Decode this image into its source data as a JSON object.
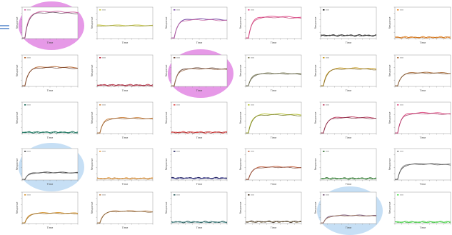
{
  "figure": {
    "columns": 6,
    "rows": 5,
    "highlight_colors": {
      "pink": "#d75bd8",
      "blue": "#9cc8ee"
    },
    "marker_color": "#3a72c4"
  },
  "chart_data": [
    {
      "type": "line",
      "panel": [
        0,
        0
      ],
      "shape": "rise",
      "level": 0.86,
      "colors": [
        "#d36aa6",
        "#5a3b52"
      ],
      "xlabel": "Time",
      "ylabel": "Response",
      "ylim": [
        0,
        1
      ],
      "highlight": "pink"
    },
    {
      "type": "line",
      "panel": [
        0,
        1
      ],
      "shape": "flat",
      "level": 0.42,
      "colors": [
        "#c8c84a",
        "#8a8a30"
      ],
      "xlabel": "Time",
      "ylabel": "Response",
      "ylim": [
        0,
        1
      ]
    },
    {
      "type": "line",
      "panel": [
        0,
        2
      ],
      "shape": "rise",
      "level": 0.62,
      "colors": [
        "#7b4ca6",
        "#c25a9a"
      ],
      "xlabel": "Time",
      "ylabel": "Response",
      "ylim": [
        0,
        1
      ]
    },
    {
      "type": "line",
      "panel": [
        0,
        3
      ],
      "shape": "rise",
      "level": 0.7,
      "colors": [
        "#e3548f",
        "#c23d73"
      ],
      "xlabel": "Time",
      "ylabel": "Response",
      "ylim": [
        0,
        1
      ]
    },
    {
      "type": "line",
      "panel": [
        0,
        4
      ],
      "shape": "low",
      "level": 0.1,
      "colors": [
        "#1a1a1a",
        "#555555"
      ],
      "xlabel": "Time",
      "ylabel": "Response",
      "ylim": [
        0,
        1
      ]
    },
    {
      "type": "line",
      "panel": [
        0,
        5
      ],
      "shape": "low",
      "level": 0.04,
      "colors": [
        "#e8892b",
        "#c06a1a"
      ],
      "xlabel": "Time",
      "ylabel": "Response",
      "ylim": [
        0,
        1
      ]
    },
    {
      "type": "line",
      "panel": [
        1,
        0
      ],
      "shape": "rise",
      "level": 0.62,
      "colors": [
        "#b86e3c",
        "#6a4030"
      ],
      "xlabel": "Time",
      "ylabel": "Response",
      "ylim": [
        0,
        1
      ]
    },
    {
      "type": "line",
      "panel": [
        1,
        1
      ],
      "shape": "low",
      "level": 0.04,
      "colors": [
        "#c0354a",
        "#8a2535"
      ],
      "xlabel": "Time",
      "ylabel": "Response",
      "ylim": [
        0,
        1
      ]
    },
    {
      "type": "line",
      "panel": [
        1,
        2
      ],
      "shape": "rise",
      "level": 0.58,
      "colors": [
        "#6a4a3a",
        "#a07050"
      ],
      "xlabel": "Time",
      "ylabel": "Response",
      "ylim": [
        0,
        1
      ],
      "highlight": "pink"
    },
    {
      "type": "line",
      "panel": [
        1,
        3
      ],
      "shape": "rise",
      "level": 0.42,
      "colors": [
        "#8a8a6a",
        "#5a5a40"
      ],
      "xlabel": "Time",
      "ylabel": "Response",
      "ylim": [
        0,
        1
      ]
    },
    {
      "type": "line",
      "panel": [
        1,
        4
      ],
      "shape": "rise",
      "level": 0.58,
      "colors": [
        "#c9a02a",
        "#7a6020"
      ],
      "xlabel": "Time",
      "ylabel": "Response",
      "ylim": [
        0,
        1
      ]
    },
    {
      "type": "line",
      "panel": [
        1,
        5
      ],
      "shape": "rise",
      "level": 0.44,
      "colors": [
        "#b0784a",
        "#705030"
      ],
      "xlabel": "Time",
      "ylabel": "Response",
      "ylim": [
        0,
        1
      ]
    },
    {
      "type": "line",
      "panel": [
        2,
        0
      ],
      "shape": "low",
      "level": 0.04,
      "colors": [
        "#1e6b5a",
        "#2e8a72"
      ],
      "xlabel": "Time",
      "ylabel": "Response",
      "ylim": [
        0,
        1
      ]
    },
    {
      "type": "line",
      "panel": [
        2,
        1
      ],
      "shape": "rise",
      "level": 0.5,
      "colors": [
        "#d08a4a",
        "#8a5a30"
      ],
      "xlabel": "Time",
      "ylabel": "Response",
      "ylim": [
        0,
        1
      ]
    },
    {
      "type": "line",
      "panel": [
        2,
        2
      ],
      "shape": "low",
      "level": 0.04,
      "colors": [
        "#e04848",
        "#a03030"
      ],
      "xlabel": "Time",
      "ylabel": "Response",
      "ylim": [
        0,
        1
      ]
    },
    {
      "type": "line",
      "panel": [
        2,
        3
      ],
      "shape": "rise",
      "level": 0.62,
      "colors": [
        "#b8c43a",
        "#6a7020"
      ],
      "xlabel": "Time",
      "ylabel": "Response",
      "ylim": [
        0,
        1
      ]
    },
    {
      "type": "line",
      "panel": [
        2,
        4
      ],
      "shape": "rise",
      "level": 0.52,
      "colors": [
        "#c04a6a",
        "#7a2a40"
      ],
      "xlabel": "Time",
      "ylabel": "Response",
      "ylim": [
        0,
        1
      ]
    },
    {
      "type": "line",
      "panel": [
        2,
        5
      ],
      "shape": "rise",
      "level": 0.66,
      "colors": [
        "#e0588a",
        "#a03060"
      ],
      "xlabel": "Time",
      "ylabel": "Response",
      "ylim": [
        0,
        1
      ]
    },
    {
      "type": "line",
      "panel": [
        3,
        0
      ],
      "shape": "rise",
      "level": 0.24,
      "colors": [
        "#4a4a4a",
        "#7a7a7a"
      ],
      "xlabel": "Time",
      "ylabel": "Response",
      "ylim": [
        0,
        1
      ],
      "highlight": "blue"
    },
    {
      "type": "line",
      "panel": [
        3,
        1
      ],
      "shape": "low",
      "level": 0.05,
      "colors": [
        "#e8a048",
        "#b07028"
      ],
      "xlabel": "Time",
      "ylabel": "Response",
      "ylim": [
        0,
        1
      ]
    },
    {
      "type": "line",
      "panel": [
        3,
        2
      ],
      "shape": "low",
      "level": 0.06,
      "colors": [
        "#1a1a5a",
        "#30308a"
      ],
      "xlabel": "Time",
      "ylabel": "Response",
      "ylim": [
        0,
        1
      ]
    },
    {
      "type": "line",
      "panel": [
        3,
        3
      ],
      "shape": "rise",
      "level": 0.42,
      "colors": [
        "#c86a4a",
        "#7a4030"
      ],
      "xlabel": "Time",
      "ylabel": "Response",
      "ylim": [
        0,
        1
      ]
    },
    {
      "type": "line",
      "panel": [
        3,
        4
      ],
      "shape": "low",
      "level": 0.05,
      "colors": [
        "#2a6a2a",
        "#4a9a4a"
      ],
      "xlabel": "Time",
      "ylabel": "Response",
      "ylim": [
        0,
        1
      ]
    },
    {
      "type": "line",
      "panel": [
        3,
        5
      ],
      "shape": "rise",
      "level": 0.52,
      "colors": [
        "#8a8a8a",
        "#4a4a4a"
      ],
      "xlabel": "Time",
      "ylabel": "Response",
      "ylim": [
        0,
        1
      ]
    },
    {
      "type": "line",
      "panel": [
        4,
        0
      ],
      "shape": "rise",
      "level": 0.34,
      "colors": [
        "#d89a3a",
        "#8a6020"
      ],
      "xlabel": "Time",
      "ylabel": "Response",
      "ylim": [
        0,
        1
      ]
    },
    {
      "type": "line",
      "panel": [
        4,
        1
      ],
      "shape": "rise",
      "level": 0.4,
      "colors": [
        "#c08a5a",
        "#7a5a30"
      ],
      "xlabel": "Time",
      "ylabel": "Response",
      "ylim": [
        0,
        1
      ]
    },
    {
      "type": "line",
      "panel": [
        4,
        2
      ],
      "shape": "low",
      "level": 0.05,
      "colors": [
        "#2a5a5a",
        "#4a8a8a"
      ],
      "xlabel": "Time",
      "ylabel": "Response",
      "ylim": [
        0,
        1
      ]
    },
    {
      "type": "line",
      "panel": [
        4,
        3
      ],
      "shape": "low",
      "level": 0.06,
      "colors": [
        "#4a3a2a",
        "#7a6a4a"
      ],
      "xlabel": "Time",
      "ylabel": "Response",
      "ylim": [
        0,
        1
      ]
    },
    {
      "type": "line",
      "panel": [
        4,
        4
      ],
      "shape": "rise",
      "level": 0.26,
      "colors": [
        "#7a5a7a",
        "#a07a5a"
      ],
      "xlabel": "Time",
      "ylabel": "Response",
      "ylim": [
        0,
        1
      ],
      "highlight": "blue"
    },
    {
      "type": "line",
      "panel": [
        4,
        5
      ],
      "shape": "low",
      "level": 0.05,
      "colors": [
        "#5ae05a",
        "#3ab03a"
      ],
      "xlabel": "Time",
      "ylabel": "Response",
      "ylim": [
        0,
        1
      ]
    }
  ]
}
